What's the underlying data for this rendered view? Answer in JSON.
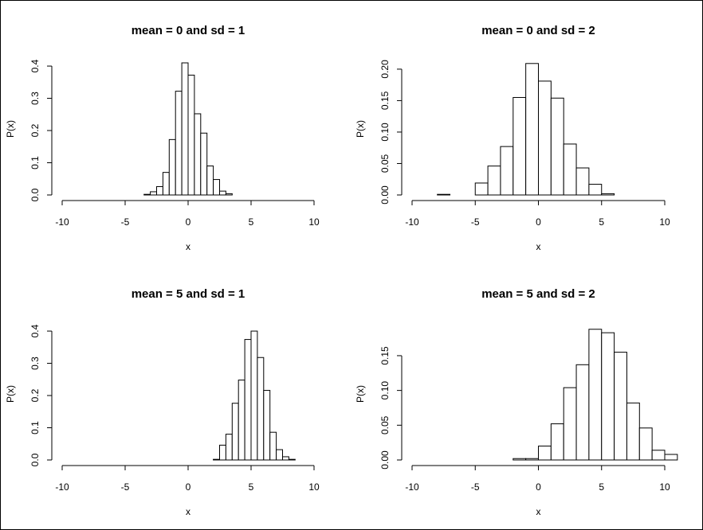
{
  "chart_data": [
    {
      "type": "histogram",
      "title": "mean = 0 and sd = 1",
      "xlabel": "x",
      "ylabel": "P(x)",
      "xlim": [
        -10,
        10
      ],
      "ylim": [
        0,
        0.41
      ],
      "xticks": [
        -10,
        -5,
        0,
        5,
        10
      ],
      "yticks": [
        0.0,
        0.1,
        0.2,
        0.3,
        0.4
      ],
      "ytick_labels": [
        "0.0",
        "0.1",
        "0.2",
        "0.3",
        "0.4"
      ],
      "grid": false,
      "bin_width": 0.5,
      "bins_start": -3.5,
      "values": [
        0.002,
        0.01,
        0.026,
        0.07,
        0.172,
        0.322,
        0.41,
        0.372,
        0.252,
        0.192,
        0.09,
        0.048,
        0.012,
        0.004
      ]
    },
    {
      "type": "histogram",
      "title": "mean = 0 and sd = 2",
      "xlabel": "x",
      "ylabel": "P(x)",
      "xlim": [
        -10,
        10
      ],
      "ylim": [
        0,
        0.21
      ],
      "xticks": [
        -10,
        -5,
        0,
        5,
        10
      ],
      "yticks": [
        0.0,
        0.05,
        0.1,
        0.15,
        0.2
      ],
      "ytick_labels": [
        "0.00",
        "0.05",
        "0.10",
        "0.15",
        "0.20"
      ],
      "grid": false,
      "bin_width": 1,
      "bins_start": -8,
      "values": [
        0.001,
        0.0,
        0.0,
        0.019,
        0.046,
        0.077,
        0.155,
        0.209,
        0.181,
        0.154,
        0.081,
        0.043,
        0.017,
        0.002
      ]
    },
    {
      "type": "histogram",
      "title": "mean = 5 and sd = 1",
      "xlabel": "x",
      "ylabel": "P(x)",
      "xlim": [
        -10,
        10
      ],
      "ylim": [
        0,
        0.41
      ],
      "xticks": [
        -10,
        -5,
        0,
        5,
        10
      ],
      "yticks": [
        0.0,
        0.1,
        0.2,
        0.3,
        0.4
      ],
      "ytick_labels": [
        "0.0",
        "0.1",
        "0.2",
        "0.3",
        "0.4"
      ],
      "grid": false,
      "bin_width": 0.5,
      "bins_start": 2,
      "values": [
        0.002,
        0.046,
        0.08,
        0.176,
        0.248,
        0.374,
        0.4,
        0.318,
        0.216,
        0.086,
        0.032,
        0.01,
        0.002
      ]
    },
    {
      "type": "histogram",
      "title": "mean = 5 and sd = 2",
      "xlabel": "x",
      "ylabel": "P(x)",
      "xlim": [
        -10,
        10
      ],
      "ylim": [
        0,
        0.19
      ],
      "xticks": [
        -10,
        -5,
        0,
        5,
        10
      ],
      "yticks": [
        0.0,
        0.05,
        0.1,
        0.15
      ],
      "ytick_labels": [
        "0.00",
        "0.05",
        "0.10",
        "0.15"
      ],
      "grid": false,
      "bin_width": 1,
      "bins_start": -2,
      "values": [
        0.002,
        0.002,
        0.02,
        0.052,
        0.104,
        0.137,
        0.188,
        0.183,
        0.155,
        0.082,
        0.046,
        0.014,
        0.008
      ]
    }
  ]
}
